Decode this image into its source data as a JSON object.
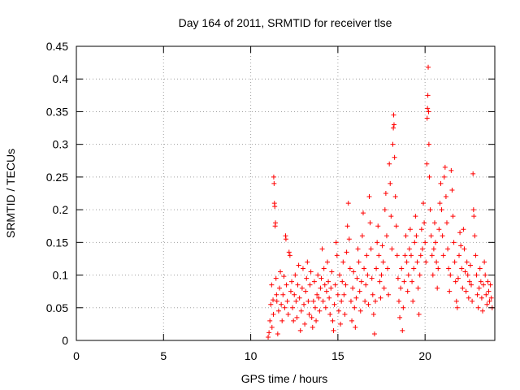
{
  "chart_data": {
    "type": "scatter",
    "title": "Day 164 of 2011, SRMTID for receiver tlse",
    "xlabel": "GPS time / hours",
    "ylabel": "SRMTID / TECUs",
    "xlim": [
      0,
      24
    ],
    "ylim": [
      0,
      0.45
    ],
    "xticks": [
      0,
      5,
      10,
      15,
      20
    ],
    "xtick_labels": [
      "0",
      "5",
      "10",
      "15",
      "20"
    ],
    "yticks": [
      0,
      0.05,
      0.1,
      0.15,
      0.2,
      0.25,
      0.3,
      0.35,
      0.4,
      0.45
    ],
    "ytick_labels": [
      "0",
      "0.05",
      "0.1",
      "0.15",
      "0.2",
      "0.25",
      "0.3",
      "0.35",
      "0.4",
      "0.45"
    ],
    "grid": true,
    "legend": "none",
    "marker": "+",
    "series": [
      {
        "name": "SRMTID",
        "color": "#ff0000",
        "points": [
          [
            11.0,
            0.005
          ],
          [
            11.05,
            0.012
          ],
          [
            11.1,
            0.03
          ],
          [
            11.15,
            0.055
          ],
          [
            11.2,
            0.085
          ],
          [
            11.22,
            0.02
          ],
          [
            11.28,
            0.062
          ],
          [
            11.3,
            0.04
          ],
          [
            11.32,
            0.25
          ],
          [
            11.34,
            0.24
          ],
          [
            11.36,
            0.21
          ],
          [
            11.38,
            0.205
          ],
          [
            11.4,
            0.175
          ],
          [
            11.42,
            0.18
          ],
          [
            11.45,
            0.095
          ],
          [
            11.48,
            0.07
          ],
          [
            11.5,
            0.06
          ],
          [
            11.55,
            0.01
          ],
          [
            11.6,
            0.045
          ],
          [
            11.65,
            0.08
          ],
          [
            11.7,
            0.105
          ],
          [
            11.75,
            0.055
          ],
          [
            11.8,
            0.03
          ],
          [
            11.85,
            0.07
          ],
          [
            11.9,
            0.098
          ],
          [
            11.95,
            0.05
          ],
          [
            12.0,
            0.16
          ],
          [
            12.02,
            0.155
          ],
          [
            12.05,
            0.085
          ],
          [
            12.1,
            0.06
          ],
          [
            12.15,
            0.04
          ],
          [
            12.2,
            0.135
          ],
          [
            12.25,
            0.13
          ],
          [
            12.3,
            0.075
          ],
          [
            12.35,
            0.09
          ],
          [
            12.4,
            0.05
          ],
          [
            12.45,
            0.03
          ],
          [
            12.5,
            0.07
          ],
          [
            12.55,
            0.1
          ],
          [
            12.6,
            0.06
          ],
          [
            12.65,
            0.035
          ],
          [
            12.7,
            0.085
          ],
          [
            12.75,
            0.115
          ],
          [
            12.8,
            0.065
          ],
          [
            12.85,
            0.015
          ],
          [
            12.9,
            0.045
          ],
          [
            12.95,
            0.08
          ],
          [
            13.0,
            0.11
          ],
          [
            13.05,
            0.055
          ],
          [
            13.1,
            0.025
          ],
          [
            13.15,
            0.075
          ],
          [
            13.2,
            0.095
          ],
          [
            13.25,
            0.12
          ],
          [
            13.3,
            0.06
          ],
          [
            13.35,
            0.04
          ],
          [
            13.4,
            0.085
          ],
          [
            13.45,
            0.105
          ],
          [
            13.5,
            0.035
          ],
          [
            13.55,
            0.02
          ],
          [
            13.6,
            0.06
          ],
          [
            13.65,
            0.09
          ],
          [
            13.7,
            0.05
          ],
          [
            13.75,
            0.03
          ],
          [
            13.8,
            0.07
          ],
          [
            13.85,
            0.1
          ],
          [
            13.9,
            0.065
          ],
          [
            13.95,
            0.045
          ],
          [
            14.0,
            0.08
          ],
          [
            14.05,
            0.095
          ],
          [
            14.1,
            0.14
          ],
          [
            14.15,
            0.06
          ],
          [
            14.2,
            0.11
          ],
          [
            14.25,
            0.085
          ],
          [
            14.3,
            0.05
          ],
          [
            14.35,
            0.075
          ],
          [
            14.4,
            0.12
          ],
          [
            14.45,
            0.09
          ],
          [
            14.5,
            0.065
          ],
          [
            14.55,
            0.04
          ],
          [
            14.6,
            0.08
          ],
          [
            14.65,
            0.105
          ],
          [
            14.7,
            0.03
          ],
          [
            14.75,
            0.015
          ],
          [
            14.8,
            0.055
          ],
          [
            14.85,
            0.085
          ],
          [
            14.9,
            0.15
          ],
          [
            14.95,
            0.13
          ],
          [
            15.0,
            0.07
          ],
          [
            15.05,
            0.045
          ],
          [
            15.1,
            0.1
          ],
          [
            15.15,
            0.025
          ],
          [
            15.2,
            0.06
          ],
          [
            15.25,
            0.09
          ],
          [
            15.3,
            0.12
          ],
          [
            15.35,
            0.07
          ],
          [
            15.4,
            0.04
          ],
          [
            15.45,
            0.085
          ],
          [
            15.5,
            0.135
          ],
          [
            15.55,
            0.175
          ],
          [
            15.6,
            0.21
          ],
          [
            15.65,
            0.155
          ],
          [
            15.7,
            0.11
          ],
          [
            15.75,
            0.06
          ],
          [
            15.8,
            0.03
          ],
          [
            15.85,
            0.08
          ],
          [
            15.9,
            0.105
          ],
          [
            15.95,
            0.05
          ],
          [
            16.0,
            0.02
          ],
          [
            16.05,
            0.065
          ],
          [
            16.1,
            0.095
          ],
          [
            16.15,
            0.14
          ],
          [
            16.2,
            0.12
          ],
          [
            16.25,
            0.075
          ],
          [
            16.3,
            0.045
          ],
          [
            16.35,
            0.09
          ],
          [
            16.4,
            0.16
          ],
          [
            16.45,
            0.195
          ],
          [
            16.5,
            0.11
          ],
          [
            16.55,
            0.06
          ],
          [
            16.6,
            0.085
          ],
          [
            16.65,
            0.13
          ],
          [
            16.7,
            0.1
          ],
          [
            16.75,
            0.055
          ],
          [
            16.8,
            0.22
          ],
          [
            16.85,
            0.18
          ],
          [
            16.9,
            0.14
          ],
          [
            16.95,
            0.095
          ],
          [
            17.0,
            0.07
          ],
          [
            17.05,
            0.04
          ],
          [
            17.1,
            0.01
          ],
          [
            17.15,
            0.06
          ],
          [
            17.2,
            0.11
          ],
          [
            17.25,
            0.15
          ],
          [
            17.3,
            0.175
          ],
          [
            17.35,
            0.13
          ],
          [
            17.4,
            0.09
          ],
          [
            17.45,
            0.065
          ],
          [
            17.5,
            0.1
          ],
          [
            17.55,
            0.145
          ],
          [
            17.6,
            0.12
          ],
          [
            17.65,
            0.08
          ],
          [
            17.7,
            0.2
          ],
          [
            17.75,
            0.225
          ],
          [
            17.8,
            0.16
          ],
          [
            17.85,
            0.11
          ],
          [
            17.9,
            0.07
          ],
          [
            17.95,
            0.27
          ],
          [
            18.0,
            0.24
          ],
          [
            18.05,
            0.19
          ],
          [
            18.1,
            0.14
          ],
          [
            18.15,
            0.3
          ],
          [
            18.18,
            0.325
          ],
          [
            18.2,
            0.345
          ],
          [
            18.22,
            0.33
          ],
          [
            18.25,
            0.28
          ],
          [
            18.3,
            0.22
          ],
          [
            18.35,
            0.175
          ],
          [
            18.4,
            0.13
          ],
          [
            18.45,
            0.095
          ],
          [
            18.5,
            0.06
          ],
          [
            18.55,
            0.035
          ],
          [
            18.6,
            0.08
          ],
          [
            18.65,
            0.11
          ],
          [
            18.7,
            0.015
          ],
          [
            18.75,
            0.05
          ],
          [
            18.8,
            0.09
          ],
          [
            18.85,
            0.13
          ],
          [
            18.9,
            0.16
          ],
          [
            18.95,
            0.12
          ],
          [
            19.0,
            0.075
          ],
          [
            19.05,
            0.1
          ],
          [
            19.1,
            0.14
          ],
          [
            19.15,
            0.17
          ],
          [
            19.2,
            0.13
          ],
          [
            19.25,
            0.09
          ],
          [
            19.3,
            0.06
          ],
          [
            19.35,
            0.11
          ],
          [
            19.4,
            0.15
          ],
          [
            19.45,
            0.19
          ],
          [
            19.5,
            0.16
          ],
          [
            19.55,
            0.12
          ],
          [
            19.6,
            0.08
          ],
          [
            19.65,
            0.04
          ],
          [
            19.7,
            0.1
          ],
          [
            19.75,
            0.13
          ],
          [
            19.8,
            0.17
          ],
          [
            19.85,
            0.14
          ],
          [
            19.9,
            0.21
          ],
          [
            19.95,
            0.18
          ],
          [
            20.0,
            0.15
          ],
          [
            20.05,
            0.12
          ],
          [
            20.1,
            0.27
          ],
          [
            20.12,
            0.34
          ],
          [
            20.14,
            0.355
          ],
          [
            20.16,
            0.375
          ],
          [
            20.18,
            0.418
          ],
          [
            20.2,
            0.35
          ],
          [
            20.22,
            0.3
          ],
          [
            20.25,
            0.25
          ],
          [
            20.3,
            0.2
          ],
          [
            20.35,
            0.16
          ],
          [
            20.4,
            0.13
          ],
          [
            20.45,
            0.1
          ],
          [
            20.5,
            0.14
          ],
          [
            20.55,
            0.18
          ],
          [
            20.6,
            0.15
          ],
          [
            20.65,
            0.12
          ],
          [
            20.7,
            0.08
          ],
          [
            20.75,
            0.11
          ],
          [
            20.8,
            0.17
          ],
          [
            20.85,
            0.21
          ],
          [
            20.9,
            0.24
          ],
          [
            20.95,
            0.2
          ],
          [
            21.0,
            0.16
          ],
          [
            21.05,
            0.13
          ],
          [
            21.1,
            0.25
          ],
          [
            21.15,
            0.265
          ],
          [
            21.2,
            0.22
          ],
          [
            21.25,
            0.18
          ],
          [
            21.3,
            0.14
          ],
          [
            21.35,
            0.11
          ],
          [
            21.4,
            0.075
          ],
          [
            21.45,
            0.1
          ],
          [
            21.5,
            0.26
          ],
          [
            21.55,
            0.23
          ],
          [
            21.6,
            0.19
          ],
          [
            21.65,
            0.15
          ],
          [
            21.7,
            0.12
          ],
          [
            21.75,
            0.09
          ],
          [
            21.8,
            0.06
          ],
          [
            21.85,
            0.05
          ],
          [
            21.9,
            0.095
          ],
          [
            21.95,
            0.13
          ],
          [
            22.0,
            0.165
          ],
          [
            22.05,
            0.145
          ],
          [
            22.1,
            0.11
          ],
          [
            22.15,
            0.08
          ],
          [
            22.2,
            0.17
          ],
          [
            22.25,
            0.14
          ],
          [
            22.3,
            0.105
          ],
          [
            22.35,
            0.075
          ],
          [
            22.4,
            0.12
          ],
          [
            22.45,
            0.1
          ],
          [
            22.5,
            0.065
          ],
          [
            22.55,
            0.09
          ],
          [
            22.6,
            0.115
          ],
          [
            22.65,
            0.085
          ],
          [
            22.7,
            0.06
          ],
          [
            22.75,
            0.255
          ],
          [
            22.78,
            0.2
          ],
          [
            22.8,
            0.19
          ],
          [
            22.85,
            0.16
          ],
          [
            22.9,
            0.13
          ],
          [
            22.95,
            0.1
          ],
          [
            23.0,
            0.07
          ],
          [
            23.05,
            0.05
          ],
          [
            23.1,
            0.08
          ],
          [
            23.15,
            0.11
          ],
          [
            23.2,
            0.09
          ],
          [
            23.25,
            0.065
          ],
          [
            23.3,
            0.045
          ],
          [
            23.35,
            0.085
          ],
          [
            23.4,
            0.12
          ],
          [
            23.45,
            0.1
          ],
          [
            23.5,
            0.07
          ],
          [
            23.55,
            0.055
          ],
          [
            23.6,
            0.09
          ],
          [
            23.65,
            0.075
          ],
          [
            23.7,
            0.06
          ],
          [
            23.75,
            0.085
          ],
          [
            23.8,
            0.065
          ],
          [
            23.85,
            0.05
          ]
        ]
      }
    ]
  }
}
